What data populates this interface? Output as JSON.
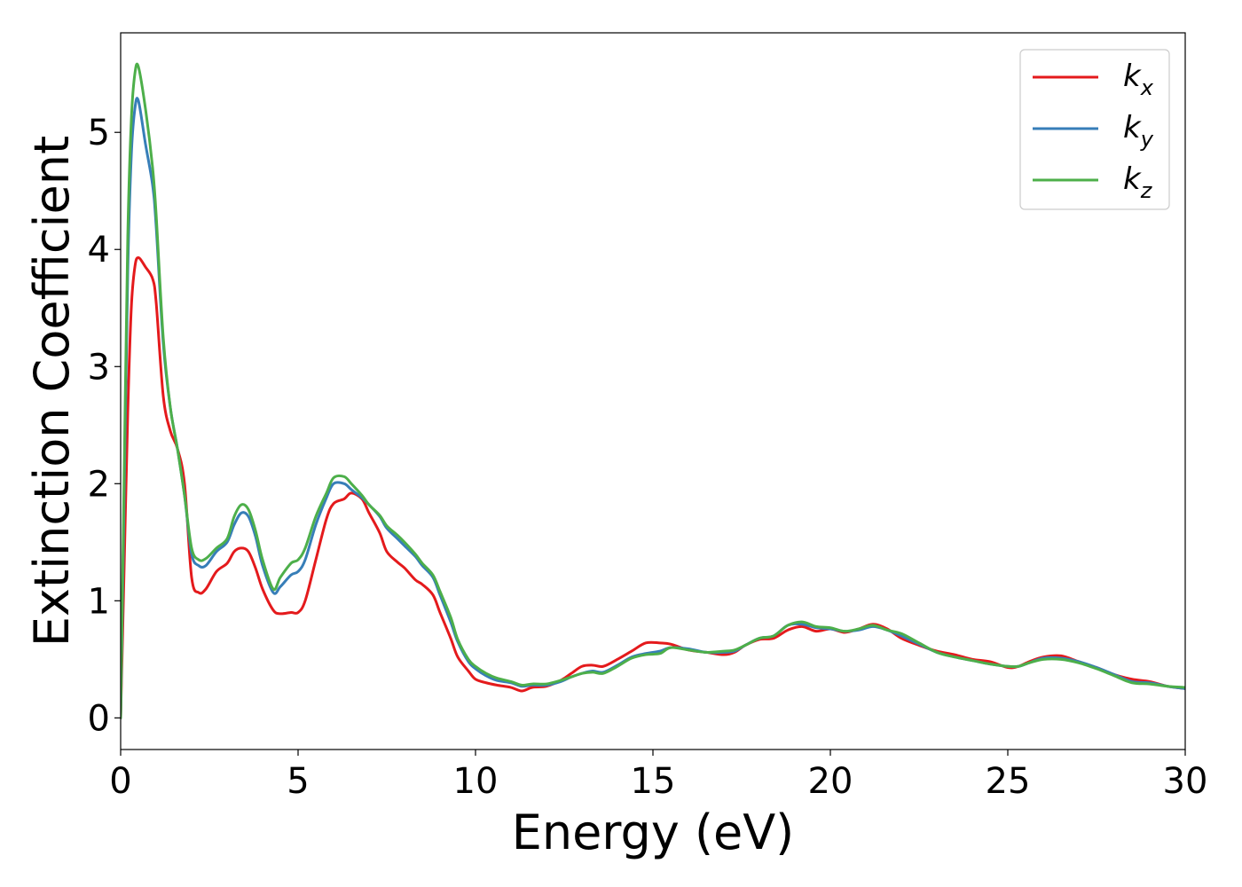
{
  "chart_data": {
    "type": "line",
    "xlabel": "Energy (eV)",
    "ylabel": "Extinction Coefficient",
    "xlim": [
      0,
      30
    ],
    "ylim": [
      -0.27,
      5.85
    ],
    "xticks": [
      0,
      5,
      10,
      15,
      20,
      25,
      30
    ],
    "yticks": [
      0,
      1,
      2,
      3,
      4,
      5
    ],
    "grid": false,
    "legend_position": "top-right",
    "series": [
      {
        "name": "k_x",
        "label_base": "k",
        "label_sub": "x",
        "color": "#e41a1c",
        "x": [
          0,
          0.1,
          0.2,
          0.3,
          0.4,
          0.5,
          0.7,
          0.9,
          1.0,
          1.2,
          1.4,
          1.6,
          1.8,
          2.0,
          2.2,
          2.4,
          2.7,
          3.0,
          3.2,
          3.4,
          3.6,
          3.8,
          4.0,
          4.3,
          4.5,
          4.8,
          5.0,
          5.2,
          5.5,
          5.8,
          6.0,
          6.3,
          6.5,
          6.8,
          7.0,
          7.3,
          7.5,
          7.8,
          8.0,
          8.3,
          8.5,
          8.8,
          9.0,
          9.3,
          9.5,
          9.8,
          10.0,
          10.3,
          10.6,
          11.0,
          11.3,
          11.6,
          12.0,
          12.4,
          12.7,
          13.0,
          13.3,
          13.6,
          14.0,
          14.4,
          14.8,
          15.2,
          15.5,
          16.0,
          16.5,
          17.0,
          17.3,
          17.6,
          18.0,
          18.4,
          18.8,
          19.2,
          19.6,
          20.0,
          20.4,
          20.8,
          21.2,
          21.6,
          22.0,
          22.5,
          23.0,
          23.5,
          24.0,
          24.5,
          25.0,
          25.3,
          25.6,
          26.0,
          26.5,
          27.0,
          27.5,
          28.0,
          28.5,
          29.0,
          29.5,
          30.0
        ],
        "y": [
          0,
          1.3,
          2.6,
          3.5,
          3.85,
          3.93,
          3.85,
          3.75,
          3.55,
          2.75,
          2.45,
          2.3,
          2.0,
          1.2,
          1.07,
          1.1,
          1.25,
          1.32,
          1.42,
          1.45,
          1.42,
          1.28,
          1.1,
          0.92,
          0.89,
          0.9,
          0.9,
          1.0,
          1.35,
          1.7,
          1.83,
          1.87,
          1.92,
          1.87,
          1.75,
          1.58,
          1.42,
          1.33,
          1.28,
          1.18,
          1.14,
          1.05,
          0.9,
          0.68,
          0.52,
          0.4,
          0.33,
          0.3,
          0.28,
          0.26,
          0.23,
          0.26,
          0.27,
          0.32,
          0.38,
          0.44,
          0.45,
          0.44,
          0.5,
          0.57,
          0.64,
          0.64,
          0.63,
          0.58,
          0.56,
          0.54,
          0.56,
          0.62,
          0.67,
          0.68,
          0.75,
          0.78,
          0.74,
          0.76,
          0.73,
          0.76,
          0.8,
          0.76,
          0.68,
          0.62,
          0.57,
          0.54,
          0.5,
          0.48,
          0.43,
          0.44,
          0.48,
          0.52,
          0.53,
          0.48,
          0.43,
          0.37,
          0.33,
          0.31,
          0.27,
          0.25
        ]
      },
      {
        "name": "k_y",
        "label_base": "k",
        "label_sub": "y",
        "color": "#377eb8",
        "x": [
          0,
          0.1,
          0.2,
          0.3,
          0.4,
          0.5,
          0.7,
          0.9,
          1.0,
          1.2,
          1.4,
          1.6,
          1.8,
          2.0,
          2.2,
          2.4,
          2.7,
          3.0,
          3.2,
          3.4,
          3.6,
          3.8,
          4.0,
          4.3,
          4.5,
          4.8,
          5.0,
          5.2,
          5.5,
          5.8,
          6.0,
          6.3,
          6.5,
          6.8,
          7.0,
          7.3,
          7.5,
          7.8,
          8.0,
          8.3,
          8.5,
          8.8,
          9.0,
          9.3,
          9.5,
          9.8,
          10.0,
          10.3,
          10.6,
          11.0,
          11.3,
          11.6,
          12.0,
          12.4,
          12.7,
          13.0,
          13.3,
          13.6,
          14.0,
          14.4,
          14.8,
          15.2,
          15.5,
          16.0,
          16.5,
          17.0,
          17.3,
          17.6,
          18.0,
          18.4,
          18.8,
          19.2,
          19.6,
          20.0,
          20.4,
          20.8,
          21.2,
          21.6,
          22.0,
          22.5,
          23.0,
          23.5,
          24.0,
          24.5,
          25.0,
          25.3,
          25.6,
          26.0,
          26.5,
          27.0,
          27.5,
          28.0,
          28.5,
          29.0,
          29.5,
          30.0
        ],
        "y": [
          0,
          1.9,
          3.8,
          4.8,
          5.2,
          5.27,
          4.9,
          4.55,
          4.2,
          3.2,
          2.65,
          2.3,
          1.9,
          1.4,
          1.3,
          1.3,
          1.42,
          1.5,
          1.65,
          1.75,
          1.72,
          1.55,
          1.3,
          1.07,
          1.12,
          1.22,
          1.25,
          1.35,
          1.65,
          1.88,
          2.0,
          2.0,
          1.95,
          1.88,
          1.82,
          1.72,
          1.62,
          1.53,
          1.47,
          1.38,
          1.3,
          1.2,
          1.05,
          0.82,
          0.65,
          0.48,
          0.42,
          0.36,
          0.32,
          0.3,
          0.27,
          0.28,
          0.28,
          0.31,
          0.35,
          0.38,
          0.4,
          0.39,
          0.45,
          0.52,
          0.55,
          0.57,
          0.6,
          0.59,
          0.56,
          0.56,
          0.57,
          0.62,
          0.68,
          0.7,
          0.79,
          0.8,
          0.77,
          0.76,
          0.74,
          0.75,
          0.78,
          0.75,
          0.7,
          0.63,
          0.56,
          0.52,
          0.49,
          0.46,
          0.44,
          0.44,
          0.47,
          0.51,
          0.51,
          0.48,
          0.43,
          0.37,
          0.31,
          0.3,
          0.27,
          0.25
        ]
      },
      {
        "name": "k_z",
        "label_base": "k",
        "label_sub": "z",
        "color": "#4daf4a",
        "x": [
          0,
          0.1,
          0.2,
          0.3,
          0.4,
          0.5,
          0.7,
          0.9,
          1.0,
          1.2,
          1.4,
          1.6,
          1.8,
          2.0,
          2.2,
          2.4,
          2.7,
          3.0,
          3.2,
          3.4,
          3.6,
          3.8,
          4.0,
          4.3,
          4.5,
          4.8,
          5.0,
          5.2,
          5.5,
          5.8,
          6.0,
          6.3,
          6.5,
          6.8,
          7.0,
          7.3,
          7.5,
          7.8,
          8.0,
          8.3,
          8.5,
          8.8,
          9.0,
          9.3,
          9.5,
          9.8,
          10.0,
          10.3,
          10.6,
          11.0,
          11.3,
          11.6,
          12.0,
          12.4,
          12.7,
          13.0,
          13.3,
          13.6,
          14.0,
          14.4,
          14.8,
          15.2,
          15.5,
          16.0,
          16.5,
          17.0,
          17.3,
          17.6,
          18.0,
          18.4,
          18.8,
          19.2,
          19.6,
          20.0,
          20.4,
          20.8,
          21.2,
          21.6,
          22.0,
          22.5,
          23.0,
          23.5,
          24.0,
          24.5,
          25.0,
          25.3,
          25.6,
          26.0,
          26.5,
          27.0,
          27.5,
          28.0,
          28.5,
          29.0,
          29.5,
          30.0
        ],
        "y": [
          0,
          2.1,
          4.1,
          5.1,
          5.5,
          5.56,
          5.2,
          4.7,
          4.3,
          3.25,
          2.65,
          2.3,
          1.9,
          1.45,
          1.35,
          1.36,
          1.45,
          1.53,
          1.72,
          1.82,
          1.78,
          1.6,
          1.35,
          1.1,
          1.2,
          1.32,
          1.35,
          1.45,
          1.72,
          1.92,
          2.05,
          2.06,
          2.0,
          1.9,
          1.82,
          1.73,
          1.64,
          1.56,
          1.5,
          1.4,
          1.32,
          1.22,
          1.08,
          0.86,
          0.67,
          0.5,
          0.44,
          0.38,
          0.34,
          0.31,
          0.28,
          0.29,
          0.29,
          0.32,
          0.35,
          0.38,
          0.39,
          0.38,
          0.44,
          0.51,
          0.54,
          0.55,
          0.6,
          0.58,
          0.56,
          0.57,
          0.58,
          0.62,
          0.68,
          0.7,
          0.79,
          0.82,
          0.78,
          0.77,
          0.74,
          0.76,
          0.79,
          0.75,
          0.72,
          0.64,
          0.56,
          0.52,
          0.49,
          0.46,
          0.44,
          0.44,
          0.47,
          0.5,
          0.5,
          0.47,
          0.42,
          0.36,
          0.3,
          0.29,
          0.27,
          0.26
        ]
      }
    ]
  }
}
